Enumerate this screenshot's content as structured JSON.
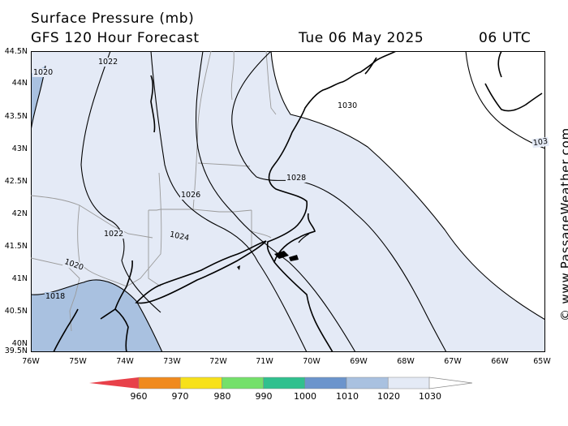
{
  "header": {
    "title": "Surface Pressure (mb)",
    "subtitle": "GFS 120 Hour Forecast",
    "date": "Tue 06 May 2025",
    "time": "06 UTC"
  },
  "credit": "© www.PassageWeather.com",
  "axes": {
    "lat_labels": [
      "44.5N",
      "44N",
      "43.5N",
      "43N",
      "42.5N",
      "42N",
      "41.5N",
      "41N",
      "40.5N",
      "40N",
      "39.5N"
    ],
    "lon_labels": [
      "76W",
      "75W",
      "74W",
      "73W",
      "72W",
      "71W",
      "70W",
      "69W",
      "68W",
      "67W",
      "66W",
      "65W"
    ]
  },
  "isobars": [
    "1020",
    "1022",
    "1030",
    "1026",
    "1028",
    "1024",
    "1022",
    "1020",
    "1018",
    "103"
  ],
  "colors": {
    "p1010_1020": "#a9c1e0",
    "p1020_1030": "#e4eaf6",
    "p_above_1030": "#ffffff",
    "coast": "#000000",
    "border": "#999999"
  },
  "scale": {
    "labels": [
      "960",
      "970",
      "980",
      "990",
      "1000",
      "1010",
      "1020",
      "1030"
    ],
    "colors": [
      "#e8414a",
      "#f08a1e",
      "#f7e11a",
      "#74e06a",
      "#30c08e",
      "#6b94cc",
      "#a9c1e0",
      "#e4eaf6"
    ]
  }
}
